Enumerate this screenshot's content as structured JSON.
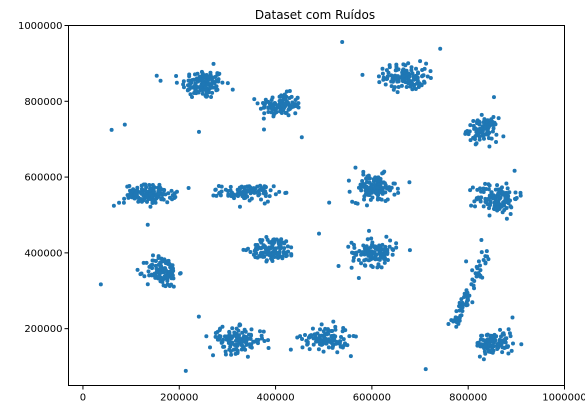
{
  "chart_data": {
    "type": "scatter",
    "title": "Dataset com Ruídos",
    "xlabel": "",
    "ylabel": "",
    "xlim": [
      -30000,
      1000000
    ],
    "ylim": [
      50000,
      1000000
    ],
    "x_ticks": [
      0,
      200000,
      400000,
      600000,
      800000,
      1000000
    ],
    "x_tick_labels": [
      "0",
      "200000",
      "400000",
      "600000",
      "800000",
      "1000000"
    ],
    "y_ticks": [
      200000,
      400000,
      600000,
      800000,
      1000000
    ],
    "y_tick_labels": [
      "200000",
      "400000",
      "600000",
      "800000",
      "1000000"
    ],
    "grid": false,
    "legend": "none",
    "marker_color": "#1f77b4",
    "clusters": [
      {
        "center": [
          250000,
          845000
        ],
        "spread": [
          40000,
          35000
        ],
        "count": 130
      },
      {
        "center": [
          410000,
          790000
        ],
        "spread": [
          40000,
          28000
        ],
        "count": 110
      },
      {
        "center": [
          670000,
          865000
        ],
        "spread": [
          40000,
          32000
        ],
        "count": 120
      },
      {
        "center": [
          830000,
          725000
        ],
        "spread": [
          28000,
          28000
        ],
        "count": 100
      },
      {
        "center": [
          140000,
          555000
        ],
        "spread": [
          48000,
          22000
        ],
        "count": 130
      },
      {
        "center": [
          340000,
          560000
        ],
        "spread": [
          50000,
          18000
        ],
        "count": 100
      },
      {
        "center": [
          605000,
          570000
        ],
        "spread": [
          40000,
          33000
        ],
        "count": 120
      },
      {
        "center": [
          860000,
          545000
        ],
        "spread": [
          40000,
          38000
        ],
        "count": 120
      },
      {
        "center": [
          165000,
          350000
        ],
        "spread": [
          30000,
          38000
        ],
        "count": 120
      },
      {
        "center": [
          395000,
          410000
        ],
        "spread": [
          42000,
          28000
        ],
        "count": 120
      },
      {
        "center": [
          605000,
          400000
        ],
        "spread": [
          42000,
          30000
        ],
        "count": 120
      },
      {
        "center": [
          320000,
          170000
        ],
        "spread": [
          52000,
          30000
        ],
        "count": 130
      },
      {
        "center": [
          505000,
          175000
        ],
        "spread": [
          45000,
          30000
        ],
        "count": 110
      },
      {
        "center": [
          855000,
          160000
        ],
        "spread": [
          35000,
          28000
        ],
        "count": 110
      }
    ],
    "line_cluster": {
      "from": [
        770000,
        200000
      ],
      "to": [
        840000,
        410000
      ],
      "count": 70,
      "jitter": 6000
    },
    "noise": {
      "count": 40
    }
  }
}
